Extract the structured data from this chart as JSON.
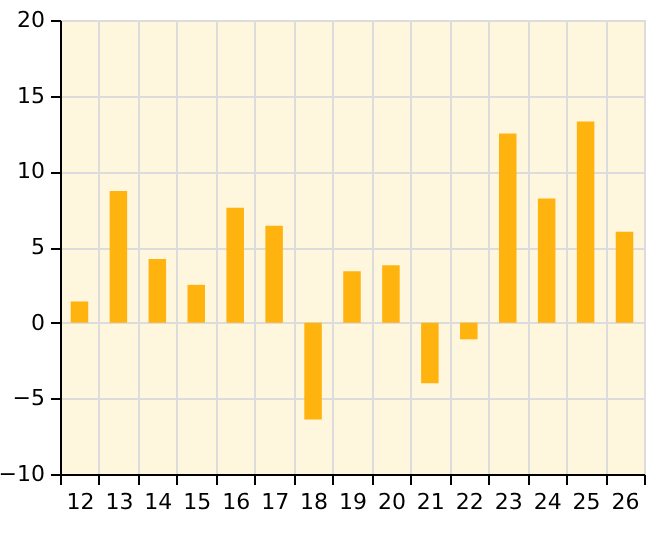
{
  "chart_data": {
    "type": "bar",
    "categories": [
      "12",
      "13",
      "14",
      "15",
      "16",
      "17",
      "18",
      "19",
      "20",
      "21",
      "22",
      "23",
      "24",
      "25",
      "26"
    ],
    "values": [
      1.4,
      8.7,
      4.2,
      2.5,
      7.6,
      6.4,
      -6.4,
      3.4,
      3.8,
      -4.0,
      -1.1,
      12.5,
      8.2,
      13.3,
      6.0
    ],
    "color": "#ffb30f",
    "ylim": [
      -10,
      20
    ],
    "yticks": [
      -10,
      -5,
      0,
      5,
      10,
      15,
      20
    ],
    "grid": true
  }
}
